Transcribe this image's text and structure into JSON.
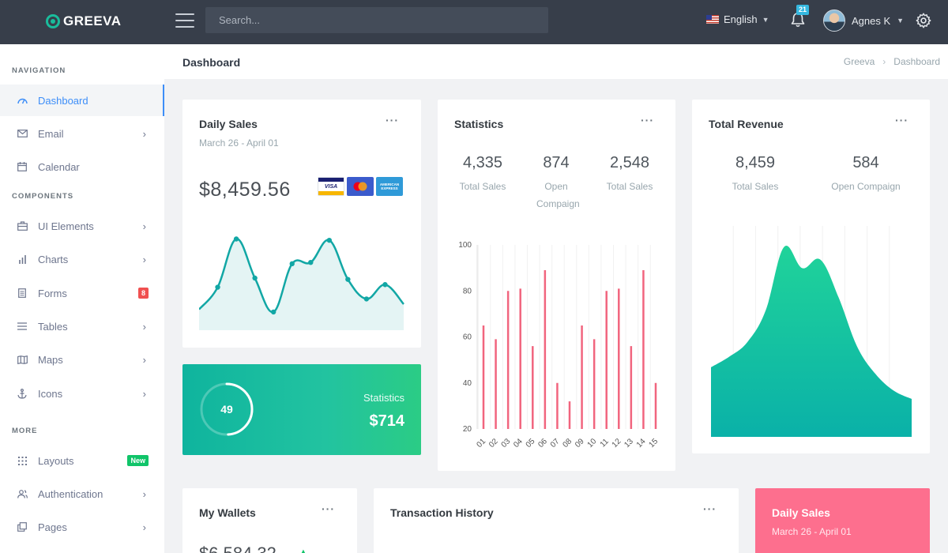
{
  "brand": {
    "name": "GREEVA"
  },
  "topbar": {
    "search_placeholder": "Search...",
    "language": "English",
    "notifications_count": "21",
    "user_name": "Agnes K"
  },
  "sidebar": {
    "sections": {
      "navigation": "NAVIGATION",
      "components": "COMPONENTS",
      "more": "MORE"
    },
    "items": [
      {
        "label": "Dashboard",
        "icon": "dashboard-icon",
        "active": true
      },
      {
        "label": "Email",
        "icon": "mail-icon"
      },
      {
        "label": "Calendar",
        "icon": "calendar-icon"
      },
      {
        "label": "UI Elements",
        "icon": "briefcase-icon"
      },
      {
        "label": "Charts",
        "icon": "bar-chart-icon"
      },
      {
        "label": "Forms",
        "icon": "document-icon",
        "badge": "8",
        "badge_color": "#f05050"
      },
      {
        "label": "Tables",
        "icon": "list-icon"
      },
      {
        "label": "Maps",
        "icon": "map-icon"
      },
      {
        "label": "Icons",
        "icon": "anchor-icon"
      },
      {
        "label": "Layouts",
        "icon": "grid-icon",
        "badge": "New",
        "badge_color": "#10c469"
      },
      {
        "label": "Authentication",
        "icon": "users-icon"
      },
      {
        "label": "Pages",
        "icon": "copy-icon"
      }
    ]
  },
  "page": {
    "title": "Dashboard",
    "breadcrumb": [
      "Greeva",
      "Dashboard"
    ]
  },
  "daily_sales": {
    "title": "Daily Sales",
    "range": "March 26 - April 01",
    "amount": "$8,459.56",
    "cards": [
      "VISA",
      "mastercard",
      "AMERICAN EXPRESS"
    ]
  },
  "statistics_card": {
    "title": "Statistics",
    "stats": [
      {
        "value": "4,335",
        "label": "Total Sales"
      },
      {
        "value": "874",
        "label": "Open Compaign"
      },
      {
        "value": "2,548",
        "label": "Total Sales"
      }
    ]
  },
  "total_revenue": {
    "title": "Total Revenue",
    "stats": [
      {
        "value": "8,459",
        "label": "Total Sales"
      },
      {
        "value": "584",
        "label": "Open Compaign"
      }
    ]
  },
  "green_widget": {
    "progress": "49",
    "label": "Statistics",
    "value": "$714"
  },
  "wallets": {
    "title": "My Wallets",
    "amount": "$6,584.32"
  },
  "transactions": {
    "title": "Transaction History"
  },
  "pink_widget": {
    "title": "Daily Sales",
    "range": "March 26 - April 01"
  },
  "colors": {
    "accent": "#3d8ef8",
    "teal": "#12a7a5",
    "bar": "#f1657e",
    "green_gradient": [
      "#0fb49e",
      "#2bcc85"
    ],
    "revenue_gradient": [
      "#20d39a",
      "#0ab1a8"
    ]
  },
  "chart_data": [
    {
      "type": "line",
      "title": "Daily Sales",
      "x": [
        1,
        2,
        3,
        4,
        5,
        6,
        7,
        8,
        9,
        10,
        11,
        12
      ],
      "values": [
        16,
        33,
        70,
        40,
        14,
        51,
        52,
        69,
        39,
        24,
        35,
        20
      ],
      "ylim": [
        0,
        80
      ],
      "smooth": true,
      "fill": "area"
    },
    {
      "type": "bar",
      "title": "Statistics",
      "categories": [
        "01",
        "02",
        "03",
        "04",
        "05",
        "06",
        "07",
        "08",
        "09",
        "10",
        "11",
        "12",
        "13",
        "14",
        "15"
      ],
      "values": [
        65,
        59,
        80,
        81,
        56,
        89,
        40,
        32,
        65,
        59,
        80,
        81,
        56,
        89,
        40
      ],
      "ylim": [
        20,
        100
      ],
      "yticks": [
        100,
        80,
        60,
        40,
        20
      ],
      "grid": "vertical"
    },
    {
      "type": "area",
      "title": "Total Revenue",
      "x": [
        1,
        2,
        3,
        4,
        5,
        6,
        7,
        8,
        9,
        10,
        11,
        12
      ],
      "values": [
        33,
        38,
        45,
        60,
        90,
        80,
        84,
        66,
        43,
        30,
        22,
        18
      ],
      "ylim": [
        0,
        100
      ],
      "smooth": true
    }
  ]
}
